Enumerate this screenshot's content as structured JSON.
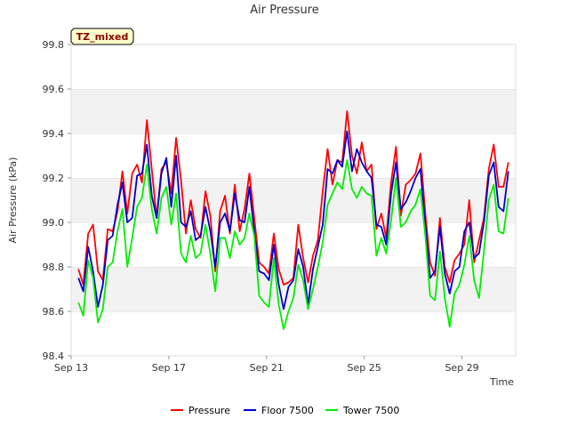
{
  "chart_data": {
    "type": "line",
    "title": "Air Pressure",
    "xlabel": "Time",
    "ylabel": "Air Pressure (kPa)",
    "tag": "TZ_mixed",
    "ylim": [
      98.4,
      99.8
    ],
    "y_ticks": [
      "98.4",
      "98.6",
      "98.8",
      "99.0",
      "99.2",
      "99.4",
      "99.6",
      "99.8"
    ],
    "x_ticks": [
      "Sep 13",
      "Sep 17",
      "Sep 21",
      "Sep 25",
      "Sep 29"
    ],
    "x_tick_days": [
      13,
      17,
      21,
      25,
      29
    ],
    "xlim_days": [
      13,
      31.2
    ],
    "grid": "horizontal shaded bands",
    "legend_position": "bottom-center",
    "x": [
      13.3,
      13.5,
      13.7,
      13.9,
      14.1,
      14.3,
      14.5,
      14.7,
      14.9,
      15.1,
      15.3,
      15.5,
      15.7,
      15.9,
      16.1,
      16.3,
      16.5,
      16.7,
      16.9,
      17.1,
      17.3,
      17.5,
      17.7,
      17.9,
      18.1,
      18.3,
      18.5,
      18.7,
      18.9,
      19.1,
      19.3,
      19.5,
      19.7,
      19.9,
      20.1,
      20.3,
      20.5,
      20.7,
      20.9,
      21.1,
      21.3,
      21.5,
      21.7,
      21.9,
      22.1,
      22.3,
      22.5,
      22.7,
      22.9,
      23.1,
      23.3,
      23.5,
      23.7,
      23.9,
      24.1,
      24.3,
      24.5,
      24.7,
      24.9,
      25.1,
      25.3,
      25.5,
      25.7,
      25.9,
      26.1,
      26.3,
      26.5,
      26.7,
      26.9,
      27.1,
      27.3,
      27.5,
      27.7,
      27.9,
      28.1,
      28.3,
      28.5,
      28.7,
      28.9,
      29.1,
      29.3,
      29.5,
      29.7,
      29.9,
      30.1,
      30.3,
      30.5,
      30.7,
      30.9
    ],
    "series": [
      {
        "name": "Pressure",
        "color": "#ff0000",
        "values": [
          98.79,
          98.72,
          98.95,
          98.99,
          98.78,
          98.74,
          98.97,
          98.96,
          99.05,
          99.23,
          99.04,
          99.22,
          99.26,
          99.18,
          99.46,
          99.24,
          99.02,
          99.24,
          99.27,
          99.13,
          99.38,
          99.19,
          98.95,
          99.1,
          98.97,
          98.93,
          99.14,
          99.03,
          98.78,
          99.05,
          99.12,
          98.95,
          99.17,
          98.96,
          99.06,
          99.22,
          99.02,
          98.82,
          98.8,
          98.77,
          98.95,
          98.79,
          98.72,
          98.73,
          98.75,
          98.99,
          98.84,
          98.73,
          98.85,
          98.92,
          99.14,
          99.33,
          99.17,
          99.28,
          99.27,
          99.5,
          99.3,
          99.22,
          99.36,
          99.23,
          99.26,
          98.97,
          99.04,
          98.93,
          99.18,
          99.34,
          99.03,
          99.17,
          99.19,
          99.22,
          99.31,
          99.04,
          98.82,
          98.76,
          99.02,
          98.8,
          98.73,
          98.83,
          98.86,
          98.9,
          99.1,
          98.82,
          98.92,
          99.02,
          99.24,
          99.35,
          99.16,
          99.16,
          99.27
        ]
      },
      {
        "name": "Floor 7500",
        "color": "#0000cc",
        "values": [
          98.75,
          98.69,
          98.89,
          98.78,
          98.62,
          98.72,
          98.92,
          98.94,
          99.08,
          99.18,
          99.0,
          99.02,
          99.21,
          99.22,
          99.35,
          99.12,
          99.02,
          99.22,
          99.29,
          99.07,
          99.3,
          99.0,
          98.98,
          99.05,
          98.92,
          98.94,
          99.07,
          98.96,
          98.8,
          99.0,
          99.04,
          98.96,
          99.13,
          99.01,
          99.0,
          99.16,
          98.96,
          98.78,
          98.77,
          98.74,
          98.9,
          98.72,
          98.61,
          98.71,
          98.74,
          98.88,
          98.8,
          98.63,
          98.79,
          98.89,
          98.99,
          99.24,
          99.22,
          99.28,
          99.25,
          99.41,
          99.23,
          99.33,
          99.27,
          99.23,
          99.2,
          98.99,
          98.98,
          98.9,
          99.13,
          99.27,
          99.06,
          99.09,
          99.14,
          99.2,
          99.24,
          98.99,
          98.75,
          98.78,
          98.98,
          98.77,
          98.68,
          98.78,
          98.8,
          98.96,
          99.0,
          98.84,
          98.86,
          99.0,
          99.21,
          99.27,
          99.07,
          99.05,
          99.23
        ]
      },
      {
        "name": "Tower 7500",
        "color": "#00ee00",
        "values": [
          98.64,
          98.58,
          98.83,
          98.75,
          98.55,
          98.61,
          98.8,
          98.82,
          98.96,
          99.06,
          98.8,
          98.93,
          99.07,
          99.11,
          99.26,
          99.06,
          98.95,
          99.11,
          99.16,
          98.99,
          99.13,
          98.86,
          98.82,
          98.94,
          98.84,
          98.86,
          98.99,
          98.86,
          98.69,
          98.93,
          98.93,
          98.84,
          98.96,
          98.9,
          98.93,
          99.04,
          98.94,
          98.67,
          98.64,
          98.62,
          98.84,
          98.63,
          98.52,
          98.6,
          98.66,
          98.81,
          98.74,
          98.61,
          98.7,
          98.8,
          98.91,
          99.08,
          99.13,
          99.18,
          99.15,
          99.28,
          99.15,
          99.11,
          99.16,
          99.13,
          99.12,
          98.85,
          98.93,
          98.86,
          99.01,
          99.2,
          98.98,
          99.0,
          99.05,
          99.08,
          99.15,
          98.94,
          98.67,
          98.65,
          98.87,
          98.66,
          98.53,
          98.68,
          98.72,
          98.81,
          98.94,
          98.74,
          98.66,
          98.87,
          99.1,
          99.17,
          98.96,
          98.95,
          99.11
        ]
      }
    ]
  }
}
